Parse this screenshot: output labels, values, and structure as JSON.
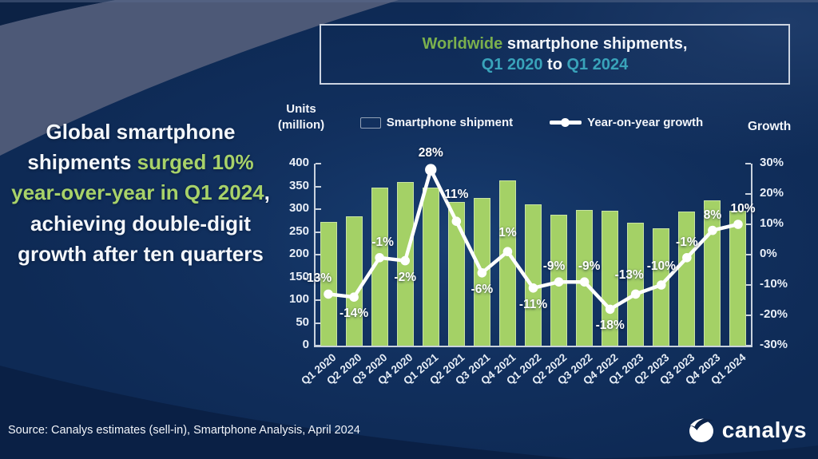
{
  "slide": {
    "headline": {
      "part1_white": "Global smartphone shipments ",
      "part2_green": "surged 10% year-over-year in Q1 2024",
      "part3_white": ", achieving double-digit growth after ten quarters"
    },
    "title_box": {
      "line1_green": "Worldwide ",
      "line1_white": "smartphone shipments,",
      "line2_teal_start": "Q1 2020",
      "line2_white": " to ",
      "line2_teal_end": "Q1 2024"
    },
    "source": {
      "text": "Source: Canalys estimates (sell-in), Smartphone Analysis, April 2024"
    },
    "logo": {
      "text": "canalys"
    }
  },
  "chart_data": {
    "type": "bar+line",
    "title": "Worldwide smartphone shipments, Q1 2020 to Q1 2024",
    "left_axis": {
      "label_line1": "Units",
      "label_line2": "(million)",
      "min": 0,
      "max": 400,
      "step": 50,
      "ticks": [
        "400",
        "350",
        "300",
        "250",
        "200",
        "150",
        "100",
        "50",
        "0"
      ]
    },
    "right_axis": {
      "label": "Growth",
      "min": -30,
      "max": 30,
      "step": 10,
      "ticks": [
        "30%",
        "20%",
        "10%",
        "0%",
        "-10%",
        "-20%",
        "-30%"
      ]
    },
    "legend": [
      {
        "label": "Smartphone shipment",
        "type": "bar",
        "color": "#a4d166"
      },
      {
        "label": "Year-on-year growth",
        "type": "line",
        "color": "#ffffff"
      }
    ],
    "legend_position": "top-center",
    "grid": false,
    "categories": [
      "Q1 2020",
      "Q2 2020",
      "Q3 2020",
      "Q4 2020",
      "Q1 2021",
      "Q2 2021",
      "Q3 2021",
      "Q4 2021",
      "Q1 2022",
      "Q2 2022",
      "Q3 2022",
      "Q4 2022",
      "Q1 2023",
      "Q2 2023",
      "Q3 2023",
      "Q4 2023",
      "Q1 2024"
    ],
    "series": [
      {
        "name": "Smartphone shipment",
        "type": "bar",
        "color": "#a4d166",
        "values": [
          272,
          285,
          348,
          360,
          347,
          316,
          325,
          363,
          311,
          287,
          298,
          297,
          270,
          258,
          295,
          320,
          296
        ]
      },
      {
        "name": "Year-on-year growth",
        "type": "line",
        "color": "#ffffff",
        "values": [
          -13,
          -14,
          -1,
          -2,
          28,
          11,
          -6,
          1,
          -11,
          -9,
          -9,
          -18,
          -13,
          -10,
          -1,
          8,
          10
        ],
        "labels": [
          "-13%",
          "-14%",
          "-1%",
          "-2%",
          "28%",
          "11%",
          "-6%",
          "1%",
          "-11%",
          "-9%",
          "-9%",
          "-18%",
          "-13%",
          "-10%",
          "-1%",
          "8%",
          "10%"
        ],
        "label_positions": [
          "above",
          "below",
          "above",
          "below",
          "above",
          "above",
          "below",
          "above",
          "below",
          "above",
          "above",
          "below",
          "above",
          "above",
          "above",
          "above",
          "above"
        ],
        "label_dx": [
          -14,
          0,
          4,
          0,
          0,
          0,
          0,
          0,
          0,
          -6,
          6,
          0,
          -8,
          0,
          0,
          0,
          6
        ],
        "label_dy": [
          0,
          0,
          0,
          0,
          -2,
          -14,
          0,
          -4,
          0,
          0,
          0,
          0,
          -4,
          -4,
          0,
          0,
          0
        ]
      }
    ],
    "colors": {
      "background": "#0e2a55",
      "bar": "#a4d166",
      "line": "#ffffff",
      "axis": "#c9d2de",
      "headline_green": "#a8d269",
      "title_green": "#7bb04d",
      "title_teal": "#39a3ba"
    }
  }
}
